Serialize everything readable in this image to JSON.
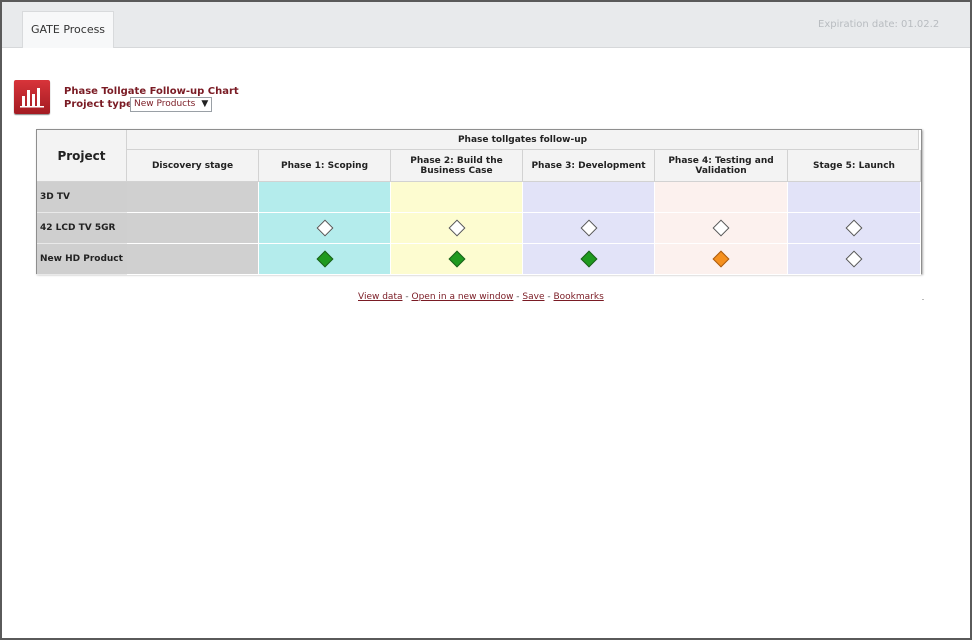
{
  "tab": {
    "label": "GATE Process"
  },
  "expiration": "Expiration date: 01.02.2",
  "chart": {
    "title": "Phase Tollgate Follow-up Chart",
    "project_type_label": "Project type",
    "project_type_value": "New Products"
  },
  "grid": {
    "project_header": "Project",
    "group_header": "Phase tollgates follow-up",
    "stages": [
      {
        "label": "Discovery stage",
        "color": "#d0d0d0"
      },
      {
        "label": "Phase 1: Scoping",
        "color": "#b4ecec"
      },
      {
        "label": "Phase 2: Build the Business Case",
        "color": "#fdfcd0"
      },
      {
        "label": "Phase 3: Development",
        "color": "#e2e3f8"
      },
      {
        "label": "Phase 4: Testing and Validation",
        "color": "#fcf1ee"
      },
      {
        "label": "Stage 5: Launch",
        "color": "#e2e3f8"
      }
    ],
    "rows": [
      {
        "name": "3D TV",
        "marks": [
          "none",
          "none",
          "none",
          "none",
          "none",
          "none"
        ]
      },
      {
        "name": "42 LCD TV 5GR",
        "marks": [
          "none",
          "empty",
          "empty",
          "empty",
          "empty",
          "empty"
        ]
      },
      {
        "name": "New HD Product",
        "marks": [
          "none",
          "green",
          "green",
          "green",
          "orange",
          "empty"
        ]
      }
    ],
    "mark_colors": {
      "empty": "#ffffff",
      "green": "#1f9a1f",
      "orange": "#f5901e"
    }
  },
  "footer": {
    "view_data": "View data",
    "open_window": "Open in a new window",
    "save": "Save",
    "bookmarks": "Bookmarks",
    "separator": " - "
  }
}
